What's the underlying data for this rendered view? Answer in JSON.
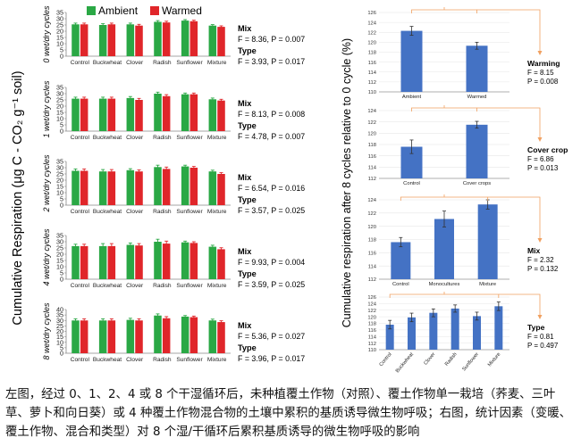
{
  "colors": {
    "ambient": "#2aa845",
    "warmed": "#e0262a",
    "bar_right": "#4472c4",
    "bracket": "#f0a060",
    "err": "#333333"
  },
  "left_ylabel": "Cumulative Respiration (μg C - CO₂ g⁻¹ soil)",
  "right_ylabel": "Cumulative respiration after 8 cycles relative to 0 cycle (%)",
  "legend": {
    "ambient": "Ambient",
    "warmed": "Warmed"
  },
  "caption": "左图，经过 0、1、2、4 或 8 个干湿循环后，未种植覆土作物（对照）、覆土作物单一栽培（荞麦、三叶草、萝卜和向日葵）或 4 种覆土作物混合物的土壤中累积的基质诱导微生物呼吸；右图，统计因素（变暖、覆土作物、混合和类型）对 8 个湿/干循环后累积基质诱导的微生物呼吸的影响",
  "chart_data": [
    {
      "type": "bar",
      "ylabel": "0 wet/dry cycles",
      "ylim": [
        0,
        35
      ],
      "yticks": [
        0,
        5,
        10,
        15,
        20,
        25,
        30,
        35
      ],
      "categories": [
        "Control",
        "Buckwheat",
        "Clover",
        "Radish",
        "Sunflower",
        "Mixture"
      ],
      "series": [
        {
          "name": "Ambient",
          "values": [
            25.5,
            25,
            25.5,
            27.5,
            28.5,
            24.5
          ],
          "errors": [
            1,
            1,
            1,
            1,
            0.8,
            0.8
          ]
        },
        {
          "name": "Warmed",
          "values": [
            25.5,
            25.5,
            24.5,
            27,
            28,
            23.5
          ],
          "errors": [
            1,
            1,
            1,
            1,
            0.8,
            0.8
          ]
        }
      ],
      "stats": [
        {
          "label": "Mix",
          "text": "F = 8.36,  P = 0.007"
        },
        {
          "label": "Type",
          "text": "F = 3.93,  P = 0.017"
        }
      ]
    },
    {
      "type": "bar",
      "ylabel": "1 wet/dry cycles",
      "ylim": [
        0,
        35
      ],
      "yticks": [
        0,
        5,
        10,
        15,
        20,
        25,
        30,
        35
      ],
      "categories": [
        "Control",
        "Buckwheat",
        "Clover",
        "Radish",
        "Sunflower",
        "Mixture"
      ],
      "series": [
        {
          "name": "Ambient",
          "values": [
            26,
            26,
            26.5,
            30,
            29.5,
            25.5
          ],
          "errors": [
            1.2,
            1.2,
            1.2,
            1.2,
            1,
            1
          ]
        },
        {
          "name": "Warmed",
          "values": [
            26,
            26,
            25,
            28,
            29.5,
            24.5
          ],
          "errors": [
            1.2,
            1.2,
            1.2,
            1.2,
            1,
            1
          ]
        }
      ],
      "stats": [
        {
          "label": "Mix",
          "text": "F = 8.13,  P = 0.008"
        },
        {
          "label": "Type",
          "text": "F = 4.78,  P = 0.007"
        }
      ]
    },
    {
      "type": "bar",
      "ylabel": "2 wet/dry cycles",
      "ylim": [
        0,
        35
      ],
      "yticks": [
        0,
        5,
        10,
        15,
        20,
        25,
        30,
        35
      ],
      "categories": [
        "Control",
        "Buckwheat",
        "Clover",
        "Radish",
        "Sunflower",
        "Mixture"
      ],
      "series": [
        {
          "name": "Ambient",
          "values": [
            27.5,
            27,
            28,
            30.5,
            31,
            27
          ],
          "errors": [
            1.5,
            1.5,
            1.2,
            1.5,
            1,
            1
          ]
        },
        {
          "name": "Warmed",
          "values": [
            27.5,
            27,
            27,
            29,
            30,
            25
          ],
          "errors": [
            1.5,
            1.5,
            1.2,
            1.5,
            1,
            1
          ]
        }
      ],
      "stats": [
        {
          "label": "Mix",
          "text": "F = 6.54,  P = 0.016"
        },
        {
          "label": "Type",
          "text": "F = 3.57,  P = 0.025"
        }
      ]
    },
    {
      "type": "bar",
      "ylabel": "4 wet/dry cycles",
      "ylim": [
        0,
        35
      ],
      "yticks": [
        0,
        5,
        10,
        15,
        20,
        25,
        30,
        35
      ],
      "categories": [
        "Control",
        "Buckwheat",
        "Clover",
        "Radish",
        "Sunflower",
        "Mixture"
      ],
      "series": [
        {
          "name": "Ambient",
          "values": [
            26.5,
            26.5,
            27.5,
            30,
            29.5,
            26
          ],
          "errors": [
            1.5,
            2,
            1.5,
            2,
            1,
            1.2
          ]
        },
        {
          "name": "Warmed",
          "values": [
            26.5,
            26.5,
            27,
            28.5,
            29,
            24
          ],
          "errors": [
            1.5,
            2,
            1.5,
            2,
            1,
            1.2
          ]
        }
      ],
      "stats": [
        {
          "label": "Mix",
          "text": "F = 9.93,  P = 0.004"
        },
        {
          "label": "Type",
          "text": "F = 3.59,  P = 0.025"
        }
      ]
    },
    {
      "type": "bar",
      "ylabel": "8 wet/dry cycles",
      "ylim": [
        0,
        40
      ],
      "yticks": [
        0,
        5,
        10,
        15,
        20,
        25,
        30,
        35,
        40
      ],
      "categories": [
        "Control",
        "Buckwheat",
        "Clover",
        "Radish",
        "Sunflower",
        "Mixture"
      ],
      "series": [
        {
          "name": "Ambient",
          "values": [
            30,
            30,
            30.5,
            34.5,
            33.5,
            30
          ],
          "errors": [
            1.5,
            1.5,
            1.5,
            1.5,
            1,
            1.2
          ]
        },
        {
          "name": "Warmed",
          "values": [
            30,
            30,
            30,
            32,
            33,
            28.5
          ],
          "errors": [
            1.5,
            1.5,
            1.5,
            1.5,
            1,
            1.2
          ]
        }
      ],
      "stats": [
        {
          "label": "Mix",
          "text": "F = 5.36,  P = 0.027"
        },
        {
          "label": "Type",
          "text": "F = 3.96,  P = 0.017"
        }
      ]
    },
    {
      "type": "bar",
      "ylim": [
        110,
        126
      ],
      "yticks": [
        110,
        112,
        114,
        116,
        118,
        120,
        122,
        124,
        126
      ],
      "categories": [
        "Ambient",
        "Warmed"
      ],
      "values": [
        122.3,
        119.3
      ],
      "errors": [
        0.9,
        0.7
      ],
      "stats": {
        "label": "Warming",
        "lines": [
          "F = 8.15",
          "P = 0.008"
        ]
      }
    },
    {
      "type": "bar",
      "ylim": [
        112,
        124
      ],
      "yticks": [
        112,
        114,
        116,
        118,
        120,
        122,
        124
      ],
      "categories": [
        "Control",
        "Cover crops"
      ],
      "values": [
        117.6,
        121.5
      ],
      "errors": [
        1.2,
        0.6
      ],
      "stats": {
        "label": "Cover crop",
        "lines": [
          "F = 6.86",
          "P = 0.013"
        ]
      }
    },
    {
      "type": "bar",
      "ylim": [
        112,
        124
      ],
      "yticks": [
        112,
        114,
        116,
        118,
        120,
        122,
        124
      ],
      "categories": [
        "Control",
        "Monocultures",
        "Mixture"
      ],
      "values": [
        117.6,
        121.1,
        123.3
      ],
      "errors": [
        0.7,
        1.2,
        0.7
      ],
      "stats": {
        "label": "Mix",
        "lines": [
          "F = 2.32",
          "P = 0.132"
        ]
      }
    },
    {
      "type": "bar",
      "ylim": [
        110,
        126
      ],
      "yticks": [
        110,
        112,
        114,
        116,
        118,
        120,
        122,
        124,
        126
      ],
      "categories": [
        "Control",
        "Buckwheat",
        "Clover",
        "Radish",
        "Sunflower",
        "Mixture"
      ],
      "values": [
        117.6,
        119.8,
        121.2,
        122.5,
        120.2,
        123.2
      ],
      "errors": [
        1.3,
        1.3,
        1.2,
        1.1,
        1.2,
        1.3
      ],
      "stats": {
        "label": "Type",
        "lines": [
          "F = 0.81",
          "P = 0.497"
        ]
      }
    }
  ]
}
